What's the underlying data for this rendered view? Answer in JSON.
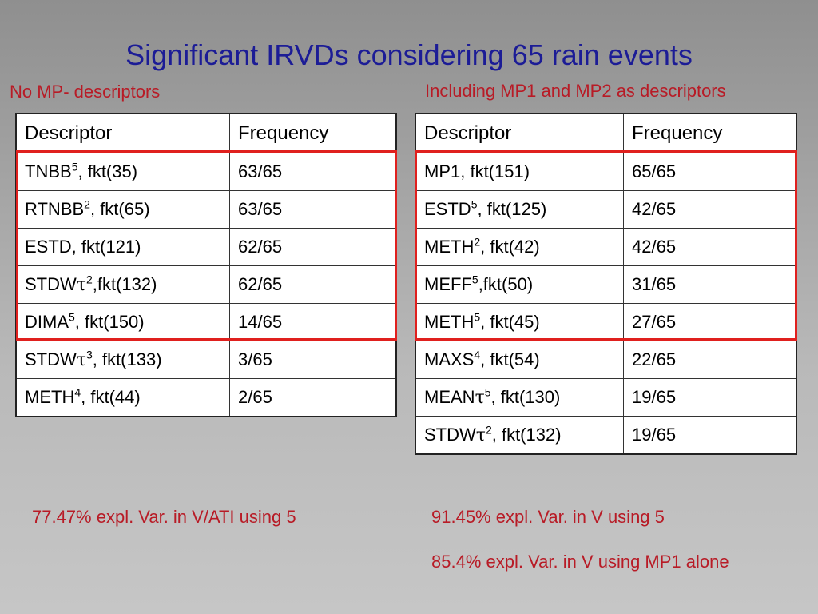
{
  "title": "Significant IRVDs considering 65 rain events",
  "left": {
    "subheading": "No MP- descriptors",
    "headers": [
      "Descriptor",
      "Frequency"
    ],
    "rows": [
      {
        "base": "TNBB",
        "sup": "5",
        "rest": ", fkt(35)",
        "freq": "63/65"
      },
      {
        "base": "RTNBB",
        "sup": "2",
        "rest": ", fkt(65)",
        "freq": "63/65"
      },
      {
        "base": "ESTD, fkt(121)",
        "sup": "",
        "rest": "",
        "freq": "62/65"
      },
      {
        "base": "STDW",
        "tau": "τ",
        "sup": "2",
        "rest": ",fkt(132)",
        "freq": "62/65"
      },
      {
        "base": "DIMA",
        "sup": "5",
        "rest": ", fkt(150)",
        "freq": "14/65"
      },
      {
        "base": "STDW",
        "tau": "τ",
        "sup": "3",
        "rest": ", fkt(133)",
        "freq": "3/65"
      },
      {
        "base": "METH",
        "sup": "4",
        "rest": ", fkt(44)",
        "freq": "2/65"
      }
    ],
    "note": "77.47% expl. Var. in V/ATI using 5"
  },
  "right": {
    "subheading": "Including MP1 and MP2 as descriptors",
    "headers": [
      "Descriptor",
      "Frequency"
    ],
    "rows": [
      {
        "base": "MP1, fkt(151)",
        "sup": "",
        "rest": "",
        "freq": "65/65"
      },
      {
        "base": "ESTD",
        "sup": "5",
        "rest": ", fkt(125)",
        "freq": "42/65"
      },
      {
        "base": "METH",
        "sup": "2",
        "rest": ", fkt(42)",
        "freq": "42/65"
      },
      {
        "base": "MEFF",
        "sup": "5",
        "rest": ",fkt(50)",
        "freq": "31/65"
      },
      {
        "base": "METH",
        "sup": "5",
        "rest": ", fkt(45)",
        "freq": "27/65"
      },
      {
        "base": "MAXS",
        "sup": "4",
        "rest": ", fkt(54)",
        "freq": "22/65"
      },
      {
        "base": "MEAN",
        "tau": "τ",
        "sup": "5",
        "rest": ", fkt(130)",
        "freq": "19/65"
      },
      {
        "base": "STDW",
        "tau": "τ",
        "sup": "2",
        "rest": ", fkt(132)",
        "freq": "19/65"
      }
    ],
    "notes": [
      "91.45% expl. Var. in V using 5",
      "85.4% expl. Var. in V using MP1 alone"
    ]
  },
  "colors": {
    "title": "#1c1c96",
    "accent": "#b81b26",
    "highlight": "#e0201e"
  }
}
